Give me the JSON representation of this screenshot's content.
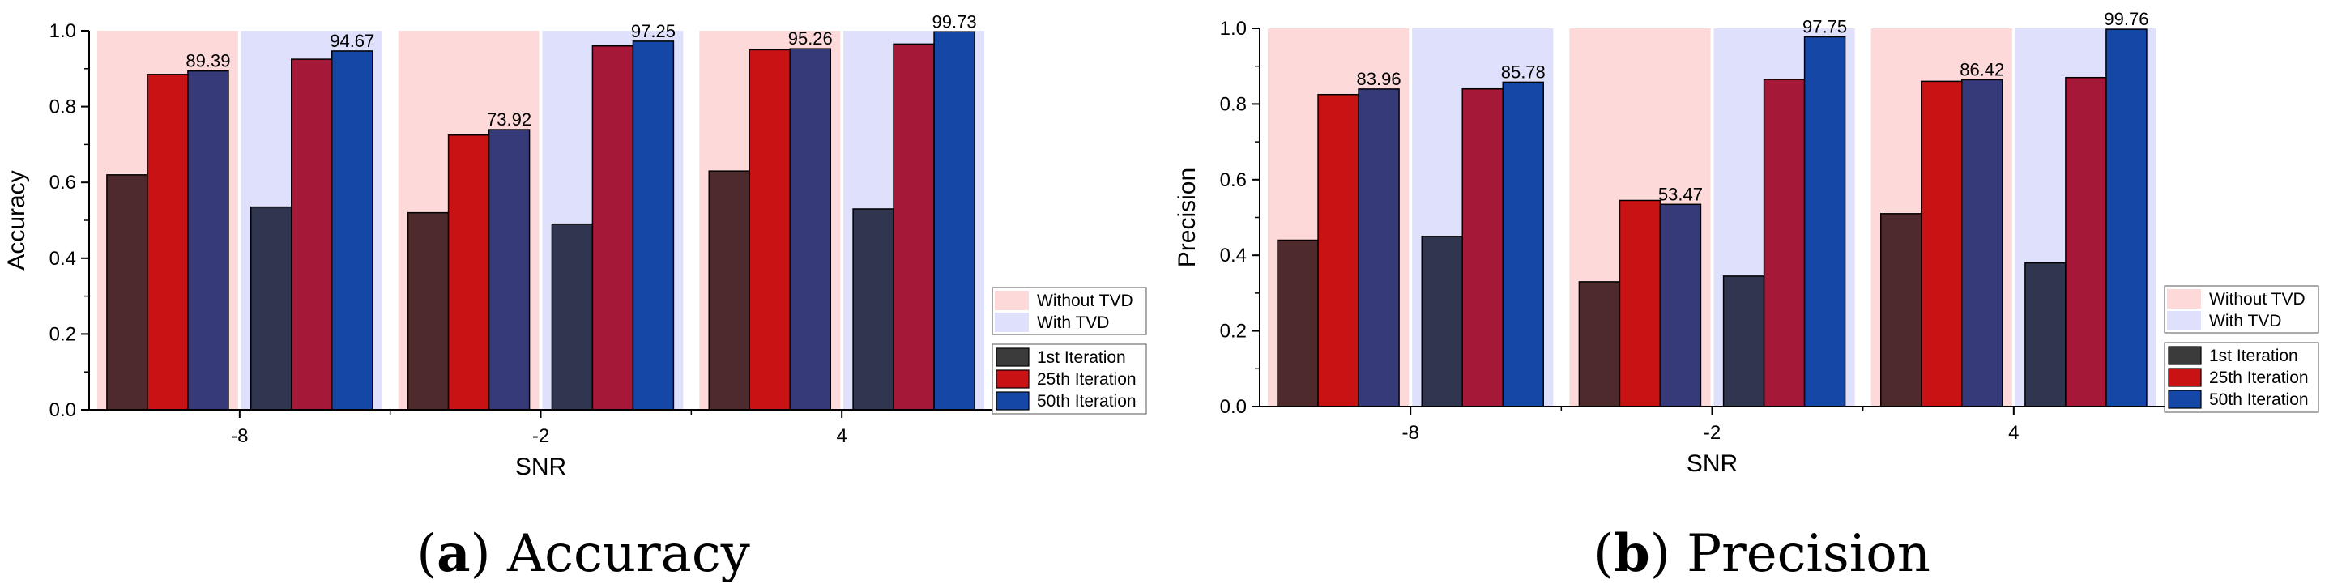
{
  "chart_data": [
    {
      "type": "bar",
      "caption_letter": "a",
      "caption_text": "Accuracy",
      "xlabel": "SNR",
      "ylabel": "Accuracy",
      "ylim": [
        0,
        1.0
      ],
      "yticks": [
        "0.0",
        "0.2",
        "0.4",
        "0.6",
        "0.8",
        "1.0"
      ],
      "categories": [
        "-8",
        "-2",
        "4"
      ],
      "groups": [
        {
          "name": "Without TVD",
          "color": "#fdd9d9",
          "series": [
            {
              "name": "1st Iteration",
              "values": [
                0.62,
                0.52,
                0.63
              ],
              "color": "#4f2a2d"
            },
            {
              "name": "25th Iteration",
              "values": [
                0.885,
                0.725,
                0.95
              ],
              "color": "#c81214"
            },
            {
              "name": "50th Iteration",
              "values": [
                0.8939,
                0.7392,
                0.9526
              ],
              "color": "#363a78"
            }
          ]
        },
        {
          "name": "With TVD",
          "color": "#dfe0fc",
          "series": [
            {
              "name": "1st Iteration",
              "values": [
                0.535,
                0.49,
                0.53
              ],
              "color": "#313650"
            },
            {
              "name": "25th Iteration",
              "values": [
                0.925,
                0.96,
                0.965
              ],
              "color": "#a51837"
            },
            {
              "name": "50th Iteration",
              "values": [
                0.9467,
                0.9725,
                0.9973
              ],
              "color": "#1548a6"
            }
          ]
        }
      ],
      "data_labels": [
        {
          "group": 0,
          "category": 0,
          "text": "89.39"
        },
        {
          "group": 1,
          "category": 0,
          "text": "94.67"
        },
        {
          "group": 0,
          "category": 1,
          "text": "73.92"
        },
        {
          "group": 1,
          "category": 1,
          "text": "97.25"
        },
        {
          "group": 0,
          "category": 2,
          "text": "95.26"
        },
        {
          "group": 1,
          "category": 2,
          "text": "99.73"
        }
      ]
    },
    {
      "type": "bar",
      "caption_letter": "b",
      "caption_text": "Precision",
      "xlabel": "SNR",
      "ylabel": "Precision",
      "ylim": [
        0,
        1.0
      ],
      "yticks": [
        "0.0",
        "0.2",
        "0.4",
        "0.6",
        "0.8",
        "1.0"
      ],
      "categories": [
        "-8",
        "-2",
        "4"
      ],
      "groups": [
        {
          "name": "Without TVD",
          "color": "#fdd9d9",
          "series": [
            {
              "name": "1st Iteration",
              "values": [
                0.44,
                0.33,
                0.51
              ],
              "color": "#4f2a2d"
            },
            {
              "name": "25th Iteration",
              "values": [
                0.825,
                0.545,
                0.86
              ],
              "color": "#c81214"
            },
            {
              "name": "50th Iteration",
              "values": [
                0.8396,
                0.5347,
                0.8642
              ],
              "color": "#363a78"
            }
          ]
        },
        {
          "name": "With TVD",
          "color": "#dfe0fc",
          "series": [
            {
              "name": "1st Iteration",
              "values": [
                0.45,
                0.345,
                0.38
              ],
              "color": "#313650"
            },
            {
              "name": "25th Iteration",
              "values": [
                0.84,
                0.865,
                0.87
              ],
              "color": "#a51837"
            },
            {
              "name": "50th Iteration",
              "values": [
                0.8578,
                0.9775,
                0.9976
              ],
              "color": "#1548a6"
            }
          ]
        }
      ],
      "data_labels": [
        {
          "group": 0,
          "category": 0,
          "text": "83.96"
        },
        {
          "group": 1,
          "category": 0,
          "text": "85.78"
        },
        {
          "group": 0,
          "category": 1,
          "text": "53.47"
        },
        {
          "group": 1,
          "category": 1,
          "text": "97.75"
        },
        {
          "group": 0,
          "category": 2,
          "text": "86.42"
        },
        {
          "group": 1,
          "category": 2,
          "text": "99.76"
        }
      ]
    }
  ],
  "legend": {
    "background_entries": [
      "Without TVD",
      "With TVD"
    ],
    "series_entries": [
      "1st Iteration",
      "25th Iteration",
      "50th Iteration"
    ]
  }
}
